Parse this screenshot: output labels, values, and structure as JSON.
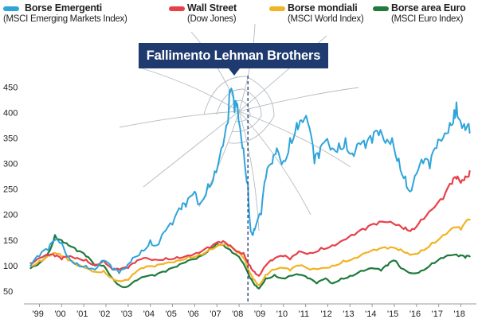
{
  "colors": {
    "emerging": "#2fa4da",
    "wallstreet": "#e8404a",
    "world": "#f2b324",
    "euro": "#1f7a3c",
    "axis": "#999999",
    "callout_bg": "#1f3a6e",
    "marker_line": "#2a3f7a",
    "crack": "#9aa5ad"
  },
  "legend": [
    {
      "name": "Borse Emergenti",
      "sub": "(MSCI Emerging Markets Index)",
      "color": "#2fa4da"
    },
    {
      "name": "Wall Street",
      "sub": "(Dow Jones)",
      "color": "#e8404a"
    },
    {
      "name": "Borse mondiali",
      "sub": "(MSCI World Index)",
      "color": "#f2b324"
    },
    {
      "name": "Borse area Euro",
      "sub": "(MSCI Euro Index)",
      "color": "#1f7a3c"
    }
  ],
  "callout": {
    "label": "Fallimento Lehman Brothers",
    "x": 2008.7
  },
  "decoration": "crack-icon",
  "chart_data": {
    "type": "line",
    "title": "",
    "xlabel": "",
    "ylabel": "",
    "xlim": [
      1998.6,
      2019.0
    ],
    "ylim": [
      25,
      480
    ],
    "grid": false,
    "y_ticks": [
      50,
      100,
      150,
      200,
      250,
      300,
      350,
      400,
      450
    ],
    "x_ticks": [
      {
        "label": "'99",
        "x": 1999.3
      },
      {
        "label": "'00",
        "x": 2000.3
      },
      {
        "label": "'01",
        "x": 2001.3
      },
      {
        "label": "'02",
        "x": 2002.3
      },
      {
        "label": "'03",
        "x": 2003.3
      },
      {
        "label": "'04",
        "x": 2004.3
      },
      {
        "label": "'05",
        "x": 2005.3
      },
      {
        "label": "'06",
        "x": 2006.3
      },
      {
        "label": "'07",
        "x": 2007.3
      },
      {
        "label": "'08",
        "x": 2008.3
      },
      {
        "label": "'09",
        "x": 2009.3
      },
      {
        "label": "'10",
        "x": 2010.3
      },
      {
        "label": "'11",
        "x": 2011.3
      },
      {
        "label": "'12",
        "x": 2012.3
      },
      {
        "label": "'13",
        "x": 2013.3
      },
      {
        "label": "'14",
        "x": 2014.3
      },
      {
        "label": "'15",
        "x": 2015.3
      },
      {
        "label": "'16",
        "x": 2016.3
      },
      {
        "label": "'17",
        "x": 2017.3
      },
      {
        "label": "'18",
        "x": 2018.3
      }
    ],
    "series": [
      {
        "name": "Borse Emergenti",
        "color": "#2fa4da",
        "points": [
          [
            1998.9,
            100
          ],
          [
            1999.3,
            118
          ],
          [
            1999.7,
            130
          ],
          [
            2000.0,
            150
          ],
          [
            2000.3,
            145
          ],
          [
            2000.6,
            118
          ],
          [
            2001.0,
            105
          ],
          [
            2001.4,
            100
          ],
          [
            2001.8,
            92
          ],
          [
            2002.2,
            110
          ],
          [
            2002.6,
            92
          ],
          [
            2002.9,
            85
          ],
          [
            2003.2,
            95
          ],
          [
            2003.5,
            115
          ],
          [
            2003.9,
            130
          ],
          [
            2004.3,
            150
          ],
          [
            2004.6,
            140
          ],
          [
            2004.9,
            165
          ],
          [
            2005.3,
            180
          ],
          [
            2005.7,
            210
          ],
          [
            2005.9,
            215
          ],
          [
            2006.3,
            245
          ],
          [
            2006.5,
            220
          ],
          [
            2006.9,
            260
          ],
          [
            2007.2,
            285
          ],
          [
            2007.5,
            330
          ],
          [
            2007.8,
            380
          ],
          [
            2007.9,
            440
          ],
          [
            2008.1,
            400
          ],
          [
            2008.2,
            410
          ],
          [
            2008.3,
            380
          ],
          [
            2008.5,
            330
          ],
          [
            2008.7,
            260
          ],
          [
            2008.8,
            180
          ],
          [
            2008.9,
            160
          ],
          [
            2009.0,
            170
          ],
          [
            2009.3,
            200
          ],
          [
            2009.5,
            270
          ],
          [
            2009.8,
            300
          ],
          [
            2010.0,
            330
          ],
          [
            2010.3,
            305
          ],
          [
            2010.6,
            350
          ],
          [
            2010.9,
            380
          ],
          [
            2011.1,
            385
          ],
          [
            2011.4,
            380
          ],
          [
            2011.7,
            300
          ],
          [
            2011.9,
            310
          ],
          [
            2012.2,
            345
          ],
          [
            2012.5,
            330
          ],
          [
            2012.8,
            340
          ],
          [
            2013.1,
            350
          ],
          [
            2013.4,
            320
          ],
          [
            2013.7,
            340
          ],
          [
            2014.0,
            330
          ],
          [
            2014.3,
            340
          ],
          [
            2014.6,
            355
          ],
          [
            2014.9,
            340
          ],
          [
            2015.2,
            350
          ],
          [
            2015.5,
            310
          ],
          [
            2015.8,
            275
          ],
          [
            2016.0,
            245
          ],
          [
            2016.3,
            280
          ],
          [
            2016.6,
            300
          ],
          [
            2016.9,
            290
          ],
          [
            2017.2,
            330
          ],
          [
            2017.5,
            350
          ],
          [
            2017.8,
            380
          ],
          [
            2018.0,
            405
          ],
          [
            2018.1,
            420
          ],
          [
            2018.3,
            380
          ],
          [
            2018.5,
            365
          ],
          [
            2018.7,
            360
          ]
        ]
      },
      {
        "name": "Wall Street",
        "color": "#e8404a",
        "points": [
          [
            1998.9,
            105
          ],
          [
            1999.3,
            115
          ],
          [
            1999.7,
            120
          ],
          [
            2000.0,
            118
          ],
          [
            2000.3,
            112
          ],
          [
            2000.6,
            118
          ],
          [
            2001.0,
            115
          ],
          [
            2001.4,
            112
          ],
          [
            2001.8,
            102
          ],
          [
            2002.2,
            110
          ],
          [
            2002.6,
            92
          ],
          [
            2002.9,
            92
          ],
          [
            2003.3,
            95
          ],
          [
            2003.6,
            105
          ],
          [
            2004.0,
            115
          ],
          [
            2004.5,
            112
          ],
          [
            2005.0,
            115
          ],
          [
            2005.5,
            117
          ],
          [
            2006.0,
            120
          ],
          [
            2006.5,
            125
          ],
          [
            2007.0,
            135
          ],
          [
            2007.5,
            145
          ],
          [
            2007.8,
            140
          ],
          [
            2008.2,
            128
          ],
          [
            2008.5,
            125
          ],
          [
            2008.8,
            100
          ],
          [
            2009.0,
            88
          ],
          [
            2009.2,
            80
          ],
          [
            2009.5,
            100
          ],
          [
            2009.8,
            110
          ],
          [
            2010.3,
            118
          ],
          [
            2010.6,
            112
          ],
          [
            2011.0,
            128
          ],
          [
            2011.5,
            125
          ],
          [
            2012.0,
            135
          ],
          [
            2012.5,
            140
          ],
          [
            2013.0,
            150
          ],
          [
            2013.5,
            160
          ],
          [
            2014.0,
            170
          ],
          [
            2014.5,
            180
          ],
          [
            2015.0,
            185
          ],
          [
            2015.5,
            180
          ],
          [
            2015.8,
            175
          ],
          [
            2016.1,
            172
          ],
          [
            2016.5,
            190
          ],
          [
            2017.0,
            210
          ],
          [
            2017.5,
            230
          ],
          [
            2017.9,
            260
          ],
          [
            2018.1,
            270
          ],
          [
            2018.3,
            262
          ],
          [
            2018.5,
            275
          ],
          [
            2018.7,
            285
          ]
        ]
      },
      {
        "name": "Borse mondiali",
        "color": "#f2b324",
        "points": [
          [
            1998.9,
            100
          ],
          [
            1999.3,
            110
          ],
          [
            1999.7,
            120
          ],
          [
            2000.0,
            125
          ],
          [
            2000.3,
            118
          ],
          [
            2000.6,
            110
          ],
          [
            2001.0,
            100
          ],
          [
            2001.4,
            95
          ],
          [
            2001.8,
            88
          ],
          [
            2002.2,
            90
          ],
          [
            2002.6,
            75
          ],
          [
            2002.9,
            70
          ],
          [
            2003.3,
            72
          ],
          [
            2003.6,
            85
          ],
          [
            2004.0,
            95
          ],
          [
            2004.5,
            98
          ],
          [
            2005.0,
            105
          ],
          [
            2005.5,
            110
          ],
          [
            2006.0,
            118
          ],
          [
            2006.5,
            122
          ],
          [
            2007.0,
            132
          ],
          [
            2007.5,
            140
          ],
          [
            2007.8,
            138
          ],
          [
            2008.2,
            125
          ],
          [
            2008.5,
            115
          ],
          [
            2008.8,
            85
          ],
          [
            2009.0,
            72
          ],
          [
            2009.2,
            62
          ],
          [
            2009.5,
            82
          ],
          [
            2009.8,
            92
          ],
          [
            2010.3,
            95
          ],
          [
            2010.6,
            90
          ],
          [
            2011.0,
            100
          ],
          [
            2011.5,
            92
          ],
          [
            2012.0,
            95
          ],
          [
            2012.5,
            100
          ],
          [
            2013.0,
            110
          ],
          [
            2013.5,
            115
          ],
          [
            2014.0,
            125
          ],
          [
            2014.5,
            130
          ],
          [
            2015.0,
            133
          ],
          [
            2015.5,
            130
          ],
          [
            2015.8,
            125
          ],
          [
            2016.1,
            122
          ],
          [
            2016.5,
            130
          ],
          [
            2017.0,
            145
          ],
          [
            2017.5,
            160
          ],
          [
            2018.0,
            175
          ],
          [
            2018.3,
            170
          ],
          [
            2018.7,
            190
          ]
        ]
      },
      {
        "name": "Borse area Euro",
        "color": "#1f7a3c",
        "points": [
          [
            1998.9,
            95
          ],
          [
            1999.3,
            105
          ],
          [
            1999.7,
            125
          ],
          [
            2000.0,
            160
          ],
          [
            2000.3,
            150
          ],
          [
            2000.6,
            140
          ],
          [
            2001.0,
            128
          ],
          [
            2001.4,
            118
          ],
          [
            2001.8,
            100
          ],
          [
            2002.2,
            100
          ],
          [
            2002.6,
            75
          ],
          [
            2002.9,
            62
          ],
          [
            2003.2,
            58
          ],
          [
            2003.6,
            70
          ],
          [
            2004.0,
            78
          ],
          [
            2004.5,
            80
          ],
          [
            2005.0,
            88
          ],
          [
            2005.5,
            98
          ],
          [
            2006.0,
            110
          ],
          [
            2006.5,
            118
          ],
          [
            2007.0,
            135
          ],
          [
            2007.3,
            145
          ],
          [
            2007.6,
            140
          ],
          [
            2008.0,
            125
          ],
          [
            2008.4,
            110
          ],
          [
            2008.8,
            75
          ],
          [
            2009.0,
            62
          ],
          [
            2009.2,
            55
          ],
          [
            2009.5,
            75
          ],
          [
            2009.9,
            82
          ],
          [
            2010.3,
            75
          ],
          [
            2010.6,
            80
          ],
          [
            2011.0,
            82
          ],
          [
            2011.4,
            75
          ],
          [
            2011.8,
            65
          ],
          [
            2012.2,
            75
          ],
          [
            2012.5,
            65
          ],
          [
            2012.9,
            75
          ],
          [
            2013.3,
            80
          ],
          [
            2013.8,
            90
          ],
          [
            2014.3,
            95
          ],
          [
            2014.7,
            90
          ],
          [
            2015.0,
            100
          ],
          [
            2015.3,
            110
          ],
          [
            2015.6,
            95
          ],
          [
            2016.1,
            85
          ],
          [
            2016.5,
            90
          ],
          [
            2017.0,
            105
          ],
          [
            2017.4,
            115
          ],
          [
            2017.8,
            120
          ],
          [
            2018.2,
            118
          ],
          [
            2018.5,
            115
          ],
          [
            2018.7,
            118
          ]
        ]
      }
    ]
  }
}
